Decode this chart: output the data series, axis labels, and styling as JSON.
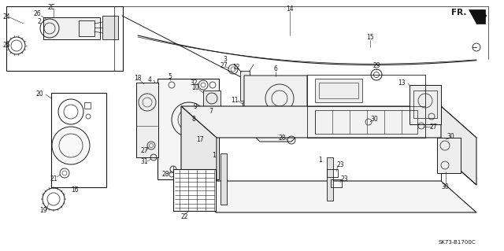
{
  "bg_color": "#ffffff",
  "line_color": "#1a1a1a",
  "diagram_code": "SK73-B1700C",
  "fr_label": "FR.",
  "gray_fill": "#c8c8c8",
  "light_gray": "#e8e8e8",
  "mid_gray": "#aaaaaa"
}
